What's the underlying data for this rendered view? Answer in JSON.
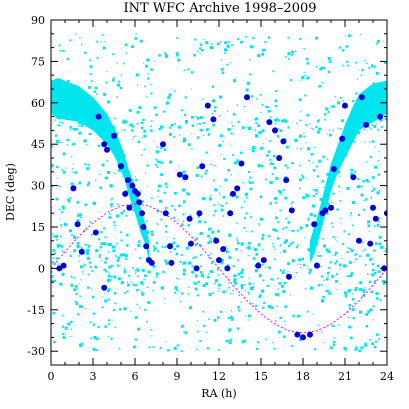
{
  "chart_data": {
    "type": "scatter",
    "title": "INT WFC Archive 1998–2009",
    "xlabel": "RA (h)",
    "ylabel": "DEC (deg)",
    "xlim": [
      0,
      24
    ],
    "ylim": [
      -35,
      90
    ],
    "xticks": [
      "0",
      "3",
      "6",
      "9",
      "12",
      "15",
      "18",
      "21",
      "24"
    ],
    "yticks": [
      "-30",
      "-15",
      "0",
      "15",
      "30",
      "45",
      "60",
      "75",
      "90"
    ],
    "colors": {
      "observations": "#00e5ee",
      "highlighted": "#0000dd",
      "ecliptic": "#ff00ff",
      "galactic_plane": "#00e5ee"
    },
    "galactic_plane_bands": [
      {
        "x": [
          0.0,
          0.5,
          1.0,
          2.0,
          3.0,
          4.0,
          4.6,
          5.2,
          5.6,
          6.0,
          6.4,
          6.8,
          7.0
        ],
        "y_low": [
          56,
          54,
          54,
          53,
          50,
          45,
          40,
          33,
          26,
          20,
          13,
          8,
          2
        ],
        "y_high": [
          68,
          69,
          68,
          66,
          62,
          56,
          50,
          42,
          35,
          30,
          22,
          15,
          10
        ]
      },
      {
        "x": [
          18.5,
          18.8,
          19.2,
          19.6,
          20.0,
          20.5,
          21.0,
          21.5,
          22.0,
          23.0,
          24.0
        ],
        "y_low": [
          2,
          5,
          12,
          20,
          28,
          35,
          40,
          45,
          50,
          53,
          56
        ],
        "y_high": [
          10,
          15,
          22,
          30,
          38,
          45,
          52,
          58,
          63,
          67,
          68
        ]
      }
    ],
    "ecliptic": {
      "name": "ecliptic",
      "x": [
        0,
        1,
        2,
        3,
        4,
        5,
        6,
        7,
        8,
        9,
        10,
        11,
        12,
        13,
        14,
        15,
        16,
        17,
        18,
        19,
        20,
        21,
        22,
        23,
        24
      ],
      "y": [
        0,
        6.1,
        11.7,
        16.5,
        20.2,
        22.6,
        23.4,
        22.6,
        20.2,
        16.5,
        11.7,
        6.1,
        0,
        -6.1,
        -11.7,
        -16.5,
        -20.2,
        -22.6,
        -23.4,
        -22.6,
        -20.2,
        -16.5,
        -11.7,
        -6.1,
        0
      ]
    },
    "highlighted_points": {
      "x": [
        3.4,
        3.8,
        4.0,
        4.5,
        5.0,
        5.3,
        5.6,
        5.8,
        6.0,
        6.2,
        6.3,
        6.5,
        6.6,
        6.8,
        7.0,
        7.2,
        1.6,
        1.9,
        2.2,
        0.6,
        3.8,
        8.0,
        8.2,
        8.6,
        9.2,
        9.6,
        9.9,
        10.0,
        10.4,
        10.6,
        11.2,
        11.6,
        11.8,
        12.0,
        12.3,
        12.6,
        12.8,
        13.0,
        13.3,
        13.6,
        14.0,
        14.8,
        15.2,
        15.6,
        16.0,
        16.3,
        16.6,
        16.8,
        17.0,
        17.6,
        18.0,
        18.5,
        19.0,
        19.4,
        19.6,
        20.2,
        20.8,
        21.0,
        21.6,
        22.2,
        22.5,
        22.8,
        23.0,
        23.2,
        23.5,
        23.8,
        24.0,
        22.0,
        20.0,
        10.8,
        5.5,
        17.2,
        18.8,
        8.5,
        0.9,
        3.2
      ],
      "y": [
        55,
        45,
        43,
        48,
        37,
        27,
        22,
        30,
        28,
        27,
        24,
        20,
        15,
        8,
        3,
        2,
        29,
        16,
        6,
        0,
        -7,
        45,
        20,
        2,
        34,
        33,
        18,
        9,
        0,
        20,
        59,
        54,
        10,
        3,
        7,
        0,
        20,
        27,
        29,
        38,
        62,
        1,
        3,
        53,
        50,
        40,
        46,
        32,
        -3,
        -24,
        -25,
        -24,
        1,
        20,
        21,
        36,
        47,
        59,
        33,
        62,
        52,
        9,
        22,
        18,
        55,
        0,
        20,
        10,
        22,
        37,
        32,
        21,
        16,
        8,
        1,
        13
      ]
    }
  }
}
